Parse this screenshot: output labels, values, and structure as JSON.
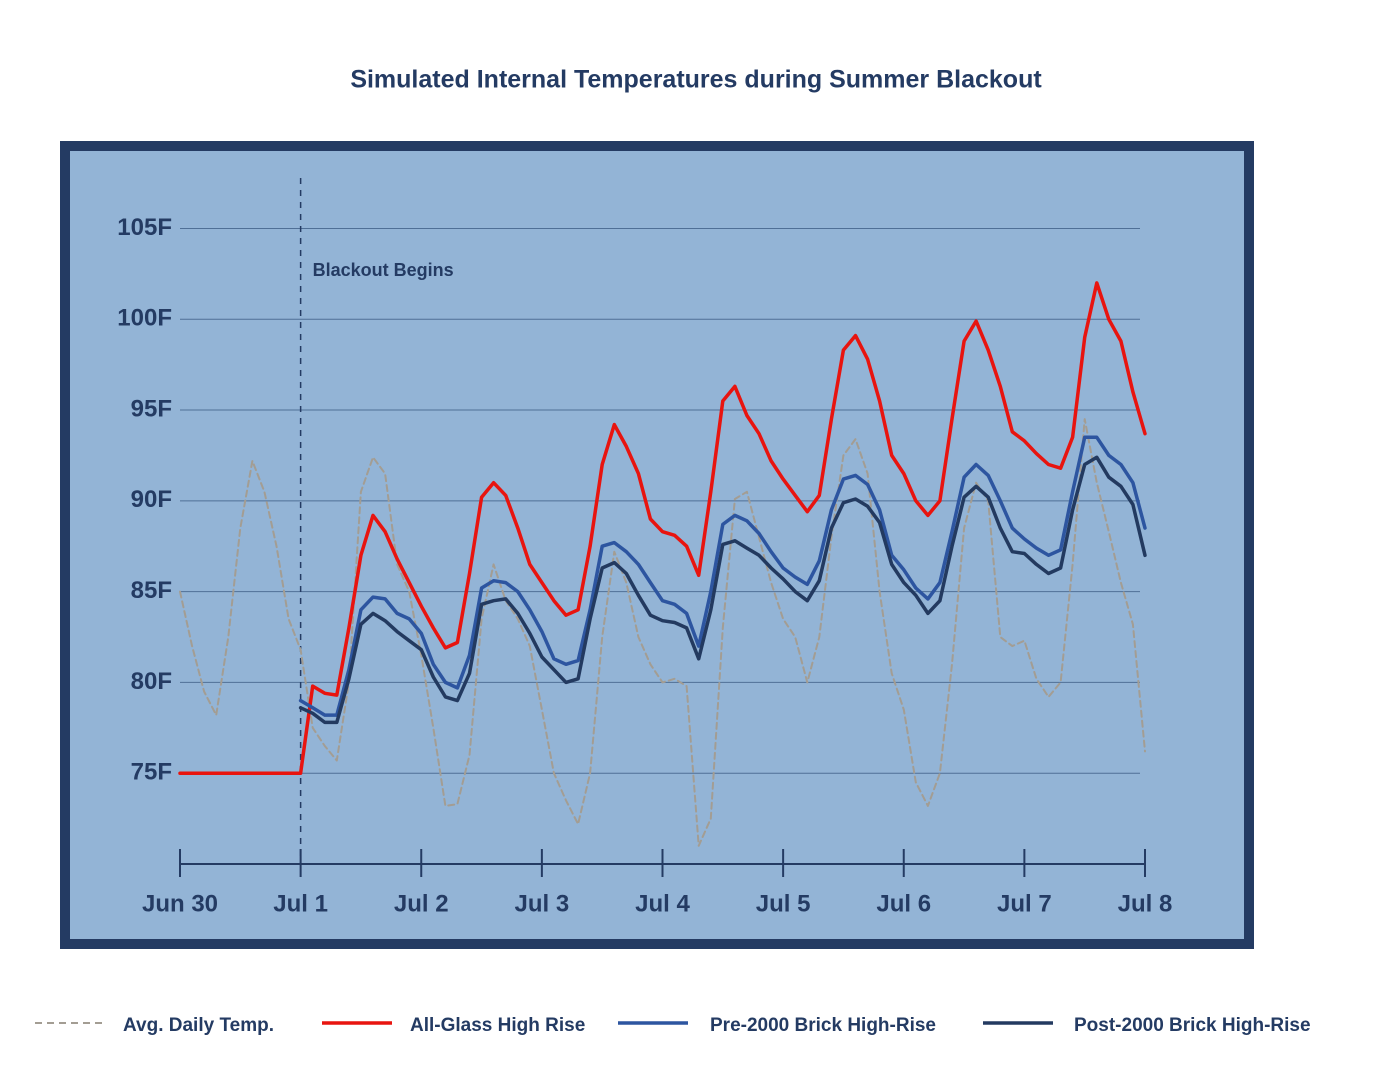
{
  "chart_data": {
    "type": "line",
    "title": "Simulated Internal Temperatures during Summer Blackout",
    "x": [
      0,
      0.1,
      0.2,
      0.3,
      0.4,
      0.5,
      0.6,
      0.7,
      0.8,
      0.9,
      1,
      1.1,
      1.2,
      1.3,
      1.4,
      1.5,
      1.6,
      1.7,
      1.8,
      1.9,
      2,
      2.1,
      2.2,
      2.3,
      2.4,
      2.5,
      2.6,
      2.7,
      2.8,
      2.9,
      3,
      3.1,
      3.2,
      3.3,
      3.4,
      3.5,
      3.6,
      3.7,
      3.8,
      3.9,
      4,
      4.1,
      4.2,
      4.3,
      4.4,
      4.5,
      4.6,
      4.7,
      4.8,
      4.9,
      5,
      5.1,
      5.2,
      5.3,
      5.4,
      5.5,
      5.6,
      5.7,
      5.8,
      5.9,
      6,
      6.1,
      6.2,
      6.3,
      6.4,
      6.5,
      6.6,
      6.7,
      6.8,
      6.9,
      7,
      7.1,
      7.2,
      7.3,
      7.4,
      7.5,
      7.6,
      7.7,
      7.8,
      7.9,
      8
    ],
    "series": [
      {
        "name": "Avg. Daily Temp.",
        "color": "#a39d93",
        "dashed": true,
        "values": [
          85,
          82,
          79.5,
          78.2,
          82.5,
          88.5,
          92.2,
          90.5,
          87.5,
          83.5,
          81.8,
          77.5,
          76.5,
          75.7,
          80,
          90.5,
          92.4,
          91.5,
          86.5,
          85,
          81.5,
          77.5,
          73.2,
          73.3,
          76,
          83.5,
          86.5,
          84.5,
          83.5,
          82,
          78.5,
          75,
          73.5,
          72.2,
          75,
          82.5,
          87.2,
          85.5,
          82.5,
          81,
          80,
          80.2,
          79.8,
          71,
          72.5,
          83,
          90.1,
          90.5,
          88,
          85.5,
          83.5,
          82.5,
          80,
          82.5,
          88,
          92.5,
          93.4,
          91.5,
          85,
          80.5,
          78.5,
          74.5,
          73.2,
          75,
          81,
          88.5,
          91,
          90,
          82.5,
          82,
          82.3,
          80.2,
          79.2,
          80,
          86.5,
          94.5,
          91,
          88.3,
          85.5,
          83.2,
          76.2
        ]
      },
      {
        "name": "All-Glass High Rise",
        "color": "#e8140f",
        "values": [
          75,
          75,
          75,
          75,
          75,
          75,
          75,
          75,
          75,
          75,
          75,
          79.8,
          79.4,
          79.3,
          83,
          87,
          89.2,
          88.3,
          86.8,
          85.5,
          84.2,
          83,
          81.9,
          82.2,
          86,
          90.2,
          91,
          90.3,
          88.5,
          86.5,
          85.5,
          84.5,
          83.7,
          84,
          87.5,
          92,
          94.2,
          93,
          91.5,
          89,
          88.3,
          88.1,
          87.5,
          85.9,
          90.5,
          95.5,
          96.3,
          94.7,
          93.7,
          92.2,
          91.2,
          90.3,
          89.4,
          90.3,
          94.5,
          98.3,
          99.1,
          97.8,
          95.5,
          92.5,
          91.5,
          90,
          89.2,
          90,
          94.5,
          98.8,
          99.9,
          98.3,
          96.3,
          93.8,
          93.3,
          92.6,
          92,
          91.8,
          93.5,
          99,
          102,
          100,
          98.8,
          96,
          93.7
        ]
      },
      {
        "name": "Pre-2000 Brick High-Rise",
        "color": "#2d55a0",
        "values": [
          null,
          null,
          null,
          null,
          null,
          null,
          null,
          null,
          null,
          null,
          79,
          78.6,
          78.2,
          78.2,
          80.7,
          84,
          84.7,
          84.6,
          83.8,
          83.5,
          82.7,
          81,
          80,
          79.7,
          81.5,
          85.2,
          85.6,
          85.5,
          85,
          84,
          82.8,
          81.3,
          81,
          81.2,
          84,
          87.5,
          87.7,
          87.2,
          86.5,
          85.5,
          84.5,
          84.3,
          83.8,
          82,
          85,
          88.7,
          89.2,
          88.9,
          88.2,
          87.2,
          86.3,
          85.8,
          85.4,
          86.7,
          89.5,
          91.2,
          91.4,
          90.9,
          89.5,
          87,
          86.2,
          85.2,
          84.6,
          85.5,
          88.3,
          91.3,
          92,
          91.4,
          90,
          88.5,
          87.9,
          87.4,
          87,
          87.3,
          90.5,
          93.5,
          93.5,
          92.5,
          92,
          91,
          88.5
        ]
      },
      {
        "name": "Post-2000 Brick High-Rise",
        "color": "#233a60",
        "values": [
          null,
          null,
          null,
          null,
          null,
          null,
          null,
          null,
          null,
          null,
          78.6,
          78.3,
          77.8,
          77.8,
          80.2,
          83.2,
          83.8,
          83.4,
          82.8,
          82.3,
          81.8,
          80.3,
          79.2,
          79,
          80.5,
          84.3,
          84.5,
          84.6,
          83.8,
          82.7,
          81.4,
          80.7,
          80,
          80.2,
          83.5,
          86.3,
          86.6,
          86,
          84.8,
          83.7,
          83.4,
          83.3,
          83,
          81.3,
          84,
          87.6,
          87.8,
          87.4,
          87,
          86.3,
          85.7,
          85,
          84.5,
          85.6,
          88.5,
          89.9,
          90.1,
          89.7,
          88.8,
          86.5,
          85.5,
          84.8,
          83.8,
          84.5,
          87.5,
          90.2,
          90.8,
          90.2,
          88.5,
          87.2,
          87.1,
          86.5,
          86,
          86.3,
          89.5,
          92,
          92.4,
          91.3,
          90.8,
          89.8,
          87
        ]
      }
    ],
    "xlim": [
      0,
      8
    ],
    "xticks": [
      {
        "value": 0,
        "label": "Jun 30"
      },
      {
        "value": 1,
        "label": "Jul 1"
      },
      {
        "value": 2,
        "label": "Jul 2"
      },
      {
        "value": 3,
        "label": "Jul 3"
      },
      {
        "value": 4,
        "label": "Jul 4"
      },
      {
        "value": 5,
        "label": "Jul 5"
      },
      {
        "value": 6,
        "label": "Jul 6"
      },
      {
        "value": 7,
        "label": "Jul 7"
      },
      {
        "value": 8,
        "label": "Jul 8"
      }
    ],
    "ylim": [
      70,
      108
    ],
    "yticks": [
      {
        "value": 75,
        "label": "75F"
      },
      {
        "value": 80,
        "label": "80F"
      },
      {
        "value": 85,
        "label": "85F"
      },
      {
        "value": 90,
        "label": "90F"
      },
      {
        "value": 95,
        "label": "95F"
      },
      {
        "value": 100,
        "label": "100F"
      },
      {
        "value": 105,
        "label": "105F"
      }
    ],
    "grid": true,
    "legend": "bottom",
    "annotation": {
      "x": 1,
      "text": "Blackout Begins"
    }
  }
}
